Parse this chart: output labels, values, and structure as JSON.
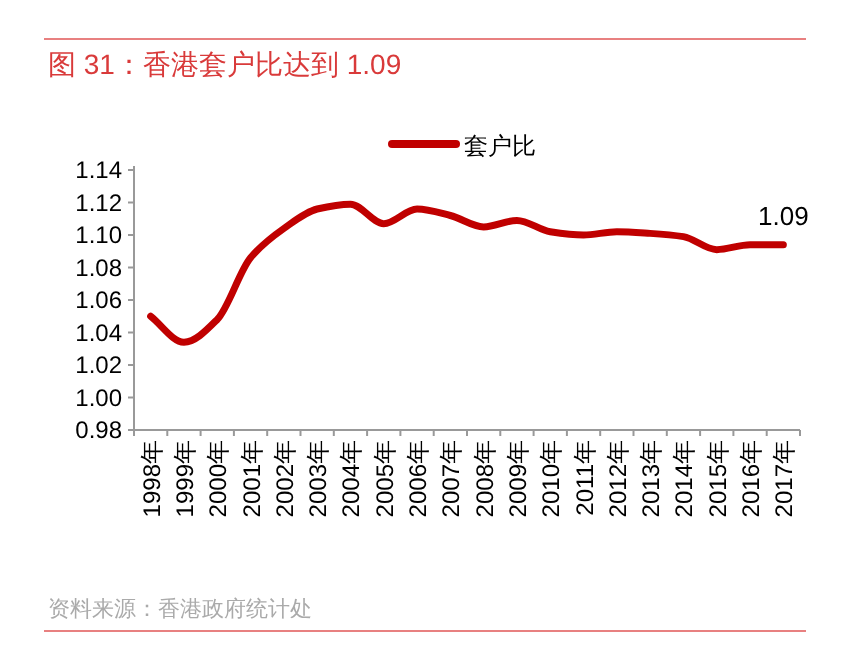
{
  "chart_data": {
    "type": "line",
    "title": "图 31：香港套户比达到 1.09",
    "categories": [
      "1998年",
      "1999年",
      "2000年",
      "2001年",
      "2002年",
      "2003年",
      "2004年",
      "2005年",
      "2006年",
      "2007年",
      "2008年",
      "2009年",
      "2010年",
      "2011年",
      "2012年",
      "2013年",
      "2014年",
      "2015年",
      "2016年",
      "2017年"
    ],
    "series": [
      {
        "name": "套户比",
        "color": "#c00000",
        "values": [
          1.05,
          1.034,
          1.048,
          1.086,
          1.104,
          1.116,
          1.119,
          1.107,
          1.116,
          1.112,
          1.105,
          1.109,
          1.102,
          1.1,
          1.102,
          1.101,
          1.099,
          1.091,
          1.094,
          1.094
        ]
      }
    ],
    "ylim": [
      0.98,
      1.14
    ],
    "yticks": [
      0.98,
      {
        "value": 1,
        "label": "1.00"
      },
      1.02,
      1.04,
      1.06,
      1.08,
      {
        "value": 1.1,
        "label": "1.10"
      },
      1.12,
      1.14
    ],
    "legend": "top",
    "grid": false,
    "marker": "none",
    "line_style": "solid",
    "annotations": [
      {
        "text": "1.09",
        "x": "2017年",
        "y": 1.094
      },
      "资料来源：香港政府统计处"
    ]
  }
}
